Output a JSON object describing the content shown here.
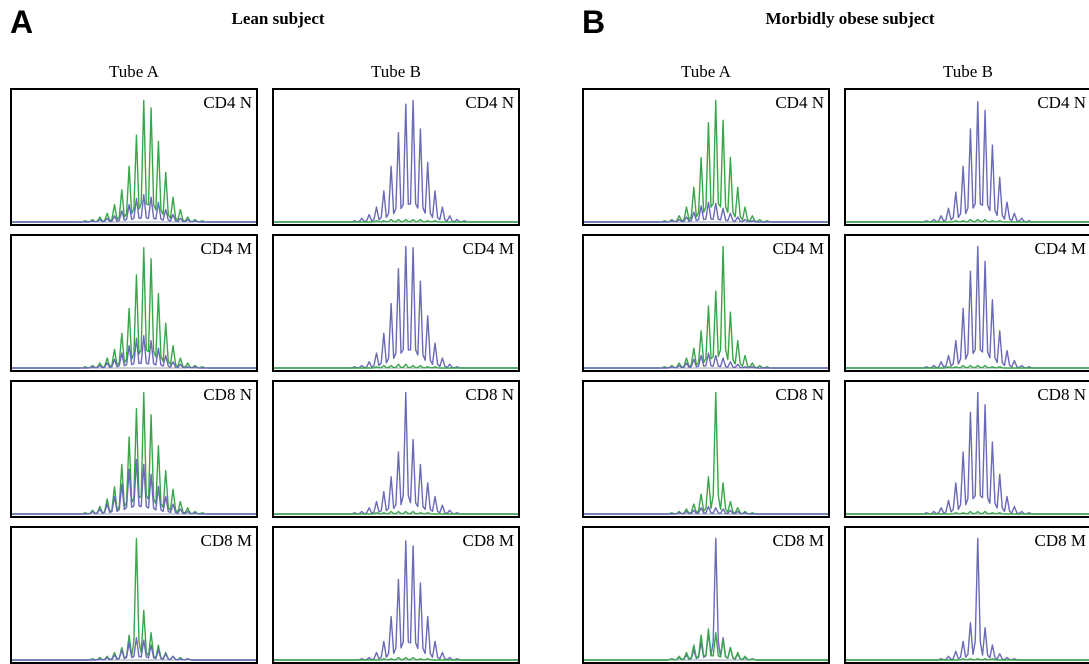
{
  "figure": {
    "panels": [
      {
        "letter": "A",
        "title": "Lean subject"
      },
      {
        "letter": "B",
        "title": "Morbidly obese subject"
      }
    ],
    "columns": [
      "Tube A",
      "Tube B"
    ],
    "rows": [
      "CD4 N",
      "CD4 M",
      "CD8 N",
      "CD8 M"
    ],
    "colors": {
      "green": "#3aa64a",
      "blue": "#6a6ab8"
    }
  },
  "chart_data": {
    "type": "line",
    "description_type": "spectratype histograms",
    "x": [
      1,
      2,
      3,
      4,
      5,
      6,
      7,
      8,
      9,
      10,
      11,
      12,
      13,
      14,
      15,
      16,
      17
    ],
    "panels": [
      {
        "subject": "Lean subject",
        "tube": "Tube A",
        "row": "CD4 N",
        "series": [
          {
            "color": "green",
            "values": [
              0.01,
              0.02,
              0.04,
              0.07,
              0.14,
              0.26,
              0.45,
              0.7,
              0.98,
              0.92,
              0.65,
              0.4,
              0.2,
              0.1,
              0.04,
              0.02,
              0.01
            ]
          },
          {
            "color": "blue",
            "values": [
              0.0,
              0.01,
              0.02,
              0.03,
              0.05,
              0.09,
              0.14,
              0.19,
              0.22,
              0.2,
              0.16,
              0.1,
              0.06,
              0.03,
              0.02,
              0.01,
              0.0
            ]
          }
        ]
      },
      {
        "subject": "Lean subject",
        "tube": "Tube B",
        "row": "CD4 N",
        "series": [
          {
            "color": "blue",
            "values": [
              0.0,
              0.01,
              0.03,
              0.06,
              0.12,
              0.25,
              0.45,
              0.72,
              0.95,
              0.98,
              0.75,
              0.48,
              0.25,
              0.12,
              0.05,
              0.02,
              0.01
            ]
          },
          {
            "color": "green",
            "values": [
              0,
              0,
              0,
              0,
              0.01,
              0.01,
              0.02,
              0.02,
              0.02,
              0.02,
              0.02,
              0.01,
              0.01,
              0,
              0,
              0,
              0
            ]
          }
        ]
      },
      {
        "subject": "Lean subject",
        "tube": "Tube A",
        "row": "CD4 M",
        "series": [
          {
            "color": "green",
            "values": [
              0.01,
              0.02,
              0.04,
              0.08,
              0.15,
              0.28,
              0.48,
              0.75,
              0.97,
              0.88,
              0.6,
              0.36,
              0.18,
              0.08,
              0.04,
              0.02,
              0.01
            ]
          },
          {
            "color": "blue",
            "values": [
              0.0,
              0.01,
              0.02,
              0.04,
              0.07,
              0.12,
              0.18,
              0.24,
              0.26,
              0.22,
              0.16,
              0.1,
              0.05,
              0.03,
              0.01,
              0.01,
              0.0
            ]
          }
        ]
      },
      {
        "subject": "Lean subject",
        "tube": "Tube B",
        "row": "CD4 M",
        "series": [
          {
            "color": "blue",
            "values": [
              0.0,
              0.01,
              0.02,
              0.05,
              0.12,
              0.28,
              0.52,
              0.8,
              0.98,
              0.97,
              0.7,
              0.42,
              0.2,
              0.08,
              0.03,
              0.01,
              0.0
            ]
          },
          {
            "color": "green",
            "values": [
              0,
              0,
              0,
              0,
              0.01,
              0.02,
              0.02,
              0.03,
              0.03,
              0.02,
              0.02,
              0.01,
              0.01,
              0,
              0,
              0,
              0
            ]
          }
        ]
      },
      {
        "subject": "Lean subject",
        "tube": "Tube A",
        "row": "CD8 N",
        "series": [
          {
            "color": "green",
            "values": [
              0.01,
              0.03,
              0.06,
              0.12,
              0.22,
              0.4,
              0.62,
              0.85,
              0.98,
              0.8,
              0.55,
              0.35,
              0.2,
              0.1,
              0.05,
              0.02,
              0.01
            ]
          },
          {
            "color": "blue",
            "values": [
              0.0,
              0.02,
              0.04,
              0.08,
              0.14,
              0.24,
              0.36,
              0.44,
              0.4,
              0.32,
              0.22,
              0.14,
              0.08,
              0.04,
              0.02,
              0.01,
              0.0
            ]
          }
        ]
      },
      {
        "subject": "Lean subject",
        "tube": "Tube B",
        "row": "CD8 N",
        "series": [
          {
            "color": "blue",
            "values": [
              0.0,
              0.01,
              0.02,
              0.05,
              0.1,
              0.18,
              0.3,
              0.5,
              0.98,
              0.6,
              0.4,
              0.25,
              0.14,
              0.07,
              0.03,
              0.01,
              0.0
            ]
          },
          {
            "color": "green",
            "values": [
              0,
              0,
              0,
              0,
              0.01,
              0.01,
              0.02,
              0.02,
              0.02,
              0.02,
              0.01,
              0.01,
              0,
              0,
              0,
              0,
              0
            ]
          }
        ]
      },
      {
        "subject": "Lean subject",
        "tube": "Tube A",
        "row": "CD8 M",
        "series": [
          {
            "color": "green",
            "values": [
              0.0,
              0.01,
              0.02,
              0.03,
              0.06,
              0.1,
              0.2,
              0.98,
              0.4,
              0.22,
              0.12,
              0.06,
              0.03,
              0.02,
              0.01,
              0.0,
              0.0
            ]
          },
          {
            "color": "blue",
            "values": [
              0.0,
              0.0,
              0.01,
              0.02,
              0.04,
              0.08,
              0.14,
              0.18,
              0.16,
              0.12,
              0.08,
              0.05,
              0.03,
              0.01,
              0.01,
              0.0,
              0.0
            ]
          }
        ]
      },
      {
        "subject": "Lean subject",
        "tube": "Tube B",
        "row": "CD8 M",
        "series": [
          {
            "color": "blue",
            "values": [
              0.0,
              0.0,
              0.01,
              0.02,
              0.06,
              0.15,
              0.35,
              0.65,
              0.96,
              0.92,
              0.62,
              0.35,
              0.15,
              0.06,
              0.02,
              0.01,
              0.0
            ]
          },
          {
            "color": "green",
            "values": [
              0,
              0,
              0,
              0,
              0,
              0.01,
              0.01,
              0.02,
              0.02,
              0.02,
              0.01,
              0.01,
              0,
              0,
              0,
              0,
              0
            ]
          }
        ]
      },
      {
        "subject": "Morbidly obese subject",
        "tube": "Tube A",
        "row": "CD4 N",
        "series": [
          {
            "color": "green",
            "values": [
              0.0,
              0.01,
              0.02,
              0.05,
              0.12,
              0.28,
              0.52,
              0.8,
              0.98,
              0.82,
              0.52,
              0.28,
              0.12,
              0.05,
              0.02,
              0.01,
              0.0
            ]
          },
          {
            "color": "blue",
            "values": [
              0.0,
              0.0,
              0.01,
              0.02,
              0.04,
              0.08,
              0.13,
              0.16,
              0.15,
              0.11,
              0.07,
              0.04,
              0.02,
              0.01,
              0.0,
              0.0,
              0.0
            ]
          }
        ]
      },
      {
        "subject": "Morbidly obese subject",
        "tube": "Tube B",
        "row": "CD4 N",
        "series": [
          {
            "color": "blue",
            "values": [
              0.0,
              0.01,
              0.02,
              0.05,
              0.11,
              0.24,
              0.45,
              0.75,
              0.97,
              0.9,
              0.62,
              0.36,
              0.16,
              0.07,
              0.03,
              0.01,
              0.0
            ]
          },
          {
            "color": "green",
            "values": [
              0,
              0,
              0,
              0,
              0,
              0.01,
              0.01,
              0.02,
              0.02,
              0.02,
              0.01,
              0.01,
              0,
              0,
              0,
              0,
              0
            ]
          }
        ]
      },
      {
        "subject": "Morbidly obese subject",
        "tube": "Tube A",
        "row": "CD4 M",
        "series": [
          {
            "color": "green",
            "values": [
              0.0,
              0.01,
              0.02,
              0.04,
              0.08,
              0.16,
              0.3,
              0.5,
              0.62,
              0.98,
              0.45,
              0.22,
              0.1,
              0.04,
              0.02,
              0.01,
              0.0
            ]
          },
          {
            "color": "blue",
            "values": [
              0.0,
              0.0,
              0.01,
              0.02,
              0.04,
              0.07,
              0.1,
              0.12,
              0.1,
              0.08,
              0.05,
              0.03,
              0.01,
              0.01,
              0.0,
              0.0,
              0.0
            ]
          }
        ]
      },
      {
        "subject": "Morbidly obese subject",
        "tube": "Tube B",
        "row": "CD4 M",
        "series": [
          {
            "color": "blue",
            "values": [
              0.0,
              0.01,
              0.02,
              0.05,
              0.1,
              0.22,
              0.48,
              0.78,
              0.98,
              0.86,
              0.55,
              0.3,
              0.14,
              0.06,
              0.02,
              0.01,
              0.0
            ]
          },
          {
            "color": "green",
            "values": [
              0,
              0,
              0,
              0,
              0.01,
              0.01,
              0.02,
              0.02,
              0.02,
              0.02,
              0.01,
              0.01,
              0,
              0,
              0,
              0,
              0
            ]
          }
        ]
      },
      {
        "subject": "Morbidly obese subject",
        "tube": "Tube A",
        "row": "CD8 N",
        "series": [
          {
            "color": "green",
            "values": [
              0.0,
              0.0,
              0.01,
              0.02,
              0.04,
              0.08,
              0.16,
              0.3,
              0.98,
              0.25,
              0.1,
              0.05,
              0.02,
              0.01,
              0.0,
              0.0,
              0.0
            ]
          },
          {
            "color": "blue",
            "values": [
              0.0,
              0.0,
              0.0,
              0.01,
              0.02,
              0.03,
              0.05,
              0.06,
              0.05,
              0.04,
              0.03,
              0.02,
              0.01,
              0.0,
              0.0,
              0.0,
              0.0
            ]
          }
        ]
      },
      {
        "subject": "Morbidly obese subject",
        "tube": "Tube B",
        "row": "CD8 N",
        "series": [
          {
            "color": "blue",
            "values": [
              0.0,
              0.01,
              0.02,
              0.05,
              0.11,
              0.25,
              0.5,
              0.82,
              0.98,
              0.88,
              0.58,
              0.32,
              0.14,
              0.06,
              0.02,
              0.01,
              0.0
            ]
          },
          {
            "color": "green",
            "values": [
              0,
              0,
              0,
              0,
              0,
              0.01,
              0.01,
              0.02,
              0.02,
              0.02,
              0.01,
              0.01,
              0,
              0,
              0,
              0,
              0
            ]
          }
        ]
      },
      {
        "subject": "Morbidly obese subject",
        "tube": "Tube A",
        "row": "CD8 M",
        "series": [
          {
            "color": "blue",
            "values": [
              0.0,
              0.0,
              0.01,
              0.02,
              0.04,
              0.08,
              0.14,
              0.22,
              0.98,
              0.18,
              0.1,
              0.05,
              0.02,
              0.01,
              0.0,
              0.0,
              0.0
            ]
          },
          {
            "color": "green",
            "values": [
              0.0,
              0.0,
              0.01,
              0.03,
              0.06,
              0.12,
              0.2,
              0.25,
              0.22,
              0.16,
              0.1,
              0.06,
              0.03,
              0.01,
              0.0,
              0.0,
              0.0
            ]
          }
        ]
      },
      {
        "subject": "Morbidly obese subject",
        "tube": "Tube B",
        "row": "CD8 M",
        "series": [
          {
            "color": "blue",
            "values": [
              0.0,
              0.0,
              0.0,
              0.01,
              0.03,
              0.07,
              0.15,
              0.3,
              0.98,
              0.26,
              0.12,
              0.05,
              0.02,
              0.01,
              0.0,
              0.0,
              0.0
            ]
          },
          {
            "color": "green",
            "values": [
              0,
              0,
              0,
              0,
              0,
              0,
              0.01,
              0.01,
              0.01,
              0.01,
              0.01,
              0,
              0,
              0,
              0,
              0,
              0
            ]
          }
        ]
      }
    ]
  }
}
